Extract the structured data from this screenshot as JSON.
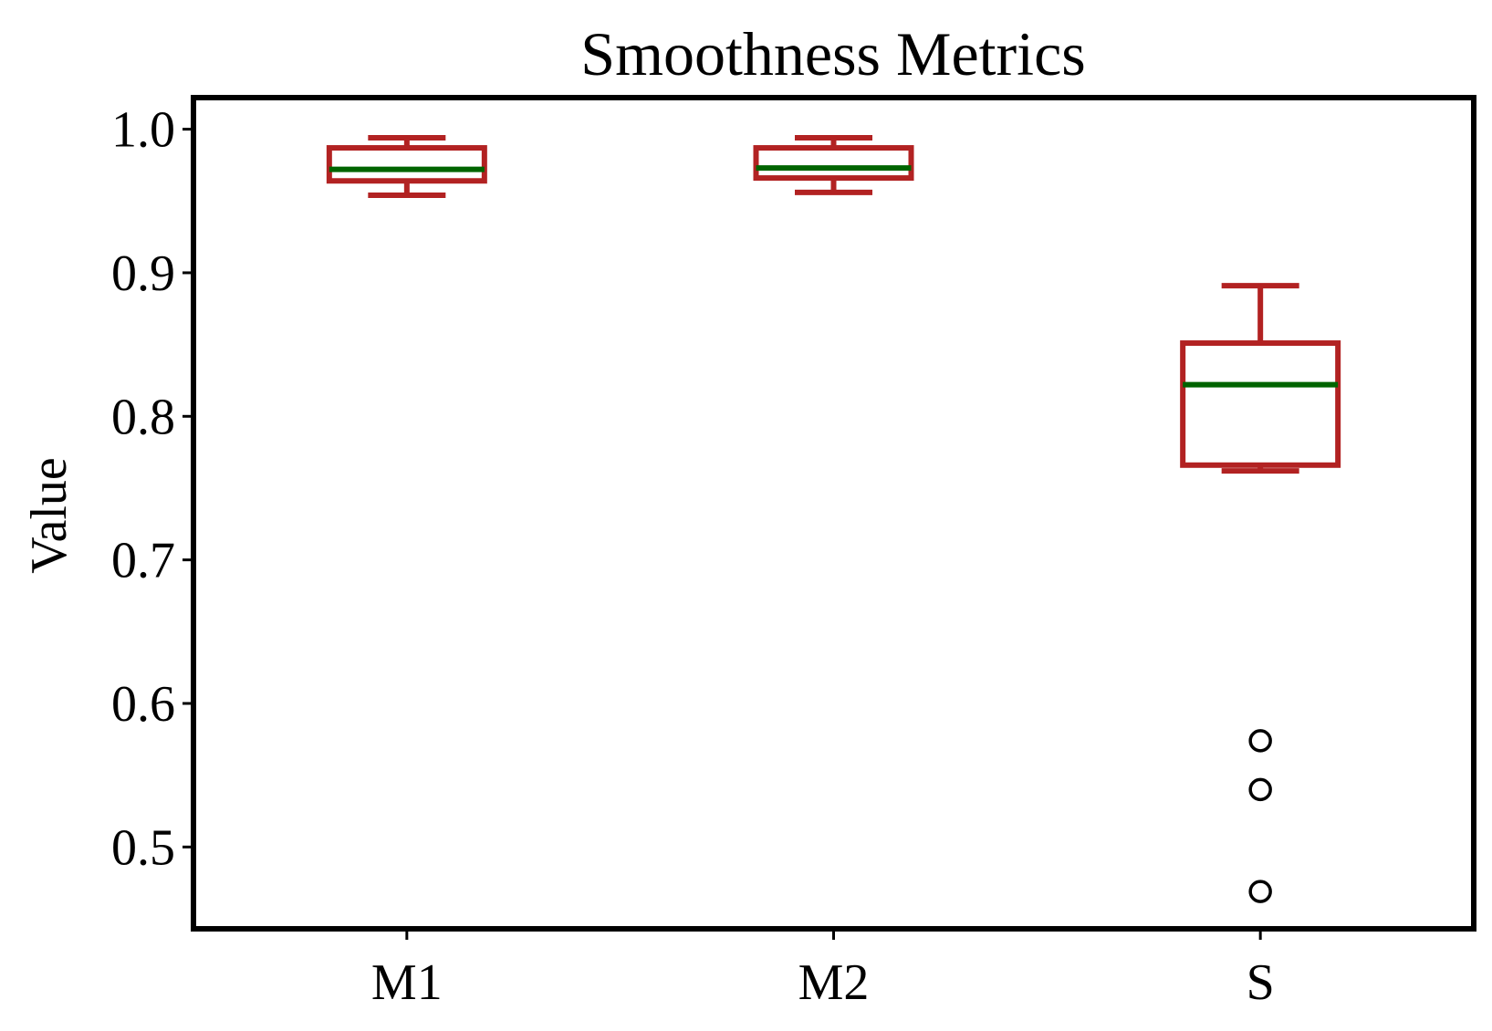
{
  "chart_data": {
    "type": "box",
    "title": "Smoothness Metrics",
    "xlabel": "",
    "ylabel": "Value",
    "ylim": [
      0.443,
      1.022
    ],
    "yticks": [
      0.5,
      0.6,
      0.7,
      0.8,
      0.9,
      1.0
    ],
    "ytick_labels": [
      "0.5",
      "0.6",
      "0.7",
      "0.8",
      "0.9",
      "1.0"
    ],
    "categories": [
      "M1",
      "M2",
      "S"
    ],
    "boxes": [
      {
        "category": "M1",
        "whisker_low": 0.954,
        "q1": 0.964,
        "median": 0.972,
        "q3": 0.987,
        "whisker_high": 0.994,
        "outliers": []
      },
      {
        "category": "M2",
        "whisker_low": 0.956,
        "q1": 0.966,
        "median": 0.973,
        "q3": 0.987,
        "whisker_high": 0.994,
        "outliers": []
      },
      {
        "category": "S",
        "whisker_low": 0.762,
        "q1": 0.766,
        "median": 0.822,
        "q3": 0.851,
        "whisker_high": 0.891,
        "outliers": [
          0.574,
          0.54,
          0.469
        ]
      }
    ],
    "grid": false,
    "colors": {
      "box": "#b22222",
      "median": "#006400",
      "outlier": "#000000",
      "frame": "#000000"
    }
  }
}
